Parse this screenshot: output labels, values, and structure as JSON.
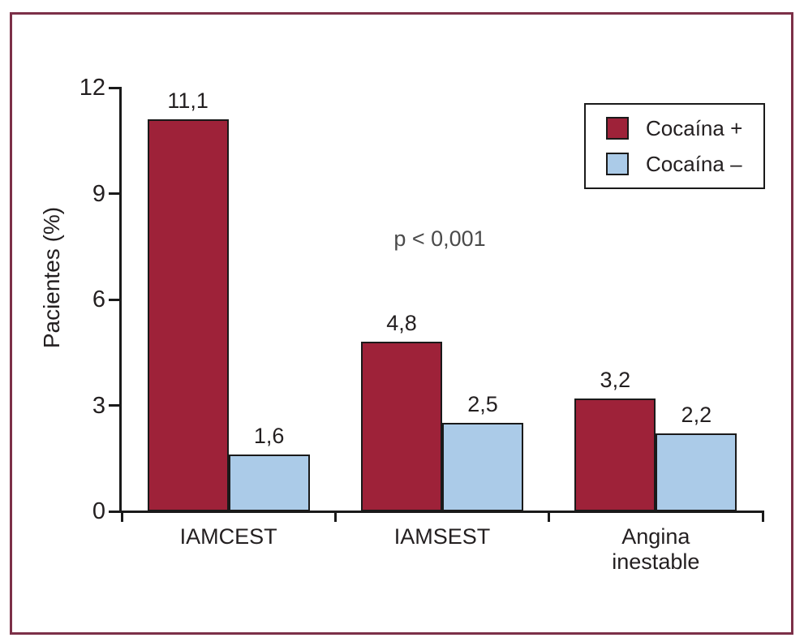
{
  "figure": {
    "border_color": "#7C3048",
    "axis_color": "#1a1a1a",
    "text_color": "#231f20"
  },
  "chart_data": {
    "type": "bar",
    "title": "",
    "xlabel": "",
    "ylabel": "Pacientes (%)",
    "categories": [
      "IAMCEST",
      "IAMSEST",
      "Angina inestable"
    ],
    "category_display": [
      "IAMCEST",
      "IAMSEST",
      "Angina\ninestable"
    ],
    "series": [
      {
        "name": "Cocaína +",
        "color": "#9E2239",
        "values": [
          11.1,
          4.8,
          3.2
        ]
      },
      {
        "name": "Cocaína –",
        "color": "#ABCBE8",
        "values": [
          1.6,
          2.5,
          2.2
        ]
      }
    ],
    "value_labels": [
      [
        "11,1",
        "4,8",
        "3,2"
      ],
      [
        "1,6",
        "2,5",
        "2,2"
      ]
    ],
    "ylim": [
      0,
      12
    ],
    "yticks": [
      0,
      3,
      6,
      9,
      12
    ],
    "annotation": "p < 0,001",
    "legend_position": "top-right",
    "grid": false
  },
  "legend": {
    "items": [
      {
        "label": "Cocaína +",
        "color": "#9E2239"
      },
      {
        "label": "Cocaína –",
        "color": "#ABCBE8"
      }
    ]
  }
}
